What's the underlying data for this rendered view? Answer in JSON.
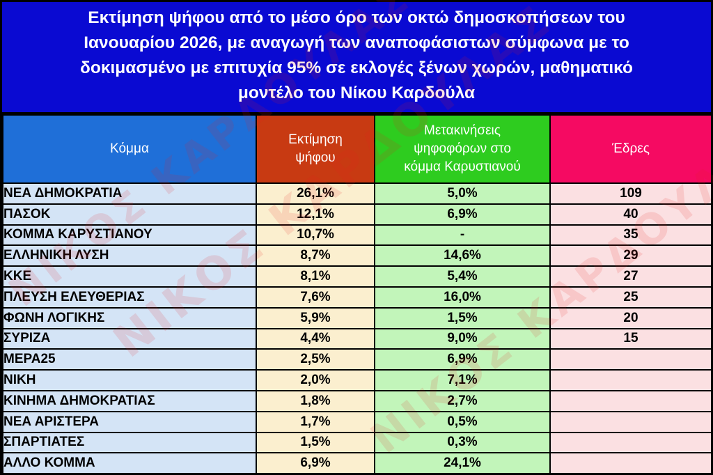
{
  "title": {
    "lines": [
      "Εκτίμηση ψήφου από το μέσο όρο των οκτώ δημοσκοπήσεων του",
      "Ιανουαρίου 2026, με αναγωγή των αναποφάσιστων σύμφωνα με το",
      "δοκιμασμένο με επιτυχία 95% σε εκλογές ξένων χωρών, μαθηματικό",
      "μοντέλο του Νίκου Καρδούλα"
    ]
  },
  "table": {
    "headers": {
      "party": [
        "Κόμμα"
      ],
      "vote": [
        "Εκτίμηση",
        "ψήφου"
      ],
      "move": [
        "Μετακινήσεις",
        "ψηφοφόρων στο",
        "κόμμα Καρυστιανού"
      ],
      "seats": [
        "Έδρες"
      ]
    },
    "rows": [
      {
        "party": "ΝΕΑ ΔΗΜΟΚΡΑΤΙΑ",
        "vote": "26,1%",
        "move": "5,0%",
        "seats": "109"
      },
      {
        "party": "ΠΑΣΟΚ",
        "vote": "12,1%",
        "move": "6,9%",
        "seats": "40"
      },
      {
        "party": "ΚΟΜΜΑ ΚΑΡΥΣΤΙΑΝΟΥ",
        "vote": "10,7%",
        "move": "-",
        "seats": "35"
      },
      {
        "party": "ΕΛΛΗΝΙΚΗ ΛΥΣΗ",
        "vote": "8,7%",
        "move": "14,6%",
        "seats": "29"
      },
      {
        "party": "ΚΚΕ",
        "vote": "8,1%",
        "move": "5,4%",
        "seats": "27"
      },
      {
        "party": "ΠΛΕΥΣΗ ΕΛΕΥΘΕΡΙΑΣ",
        "vote": "7,6%",
        "move": "16,0%",
        "seats": "25"
      },
      {
        "party": "ΦΩΝΗ ΛΟΓΙΚΗΣ",
        "vote": "5,9%",
        "move": "1,5%",
        "seats": "20"
      },
      {
        "party": "ΣΥΡΙΖΑ",
        "vote": "4,4%",
        "move": "9,0%",
        "seats": "15"
      },
      {
        "party": "ΜΕΡΑ25",
        "vote": "2,5%",
        "move": "6,9%",
        "seats": ""
      },
      {
        "party": "ΝΙΚΗ",
        "vote": "2,0%",
        "move": "7,1%",
        "seats": ""
      },
      {
        "party": "ΚΙΝΗΜΑ ΔΗΜΟΚΡΑΤΙΑΣ",
        "vote": "1,8%",
        "move": "2,7%",
        "seats": ""
      },
      {
        "party": "ΝΕΑ ΑΡΙΣΤΕΡΑ",
        "vote": "1,7%",
        "move": "0,5%",
        "seats": ""
      },
      {
        "party": "ΣΠΑΡΤΙΑΤΕΣ",
        "vote": "1,5%",
        "move": "0,3%",
        "seats": ""
      },
      {
        "party": "ΑΛΛΟ ΚΟΜΜΑ",
        "vote": "6,9%",
        "move": "24,1%",
        "seats": ""
      }
    ]
  },
  "watermark": {
    "text": "ΝΙΚΟΣ ΚΑΡΔΟΥΛΑΣ"
  },
  "colors": {
    "title_bg": "#0a0ad2",
    "header_party": "#1f6fd8",
    "header_vote": "#c83a12",
    "header_move": "#2ecc1f",
    "header_seats": "#f50a62"
  }
}
